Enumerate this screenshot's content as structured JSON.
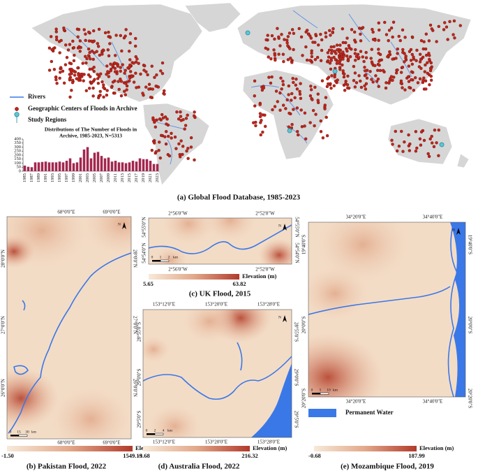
{
  "panel_a": {
    "legend": [
      "Rivers",
      "Geographic Centers of Floods in Archive",
      "Study Regions"
    ],
    "caption": "(a) Global Flood Database, 1985-2023"
  },
  "chart_data": {
    "type": "bar",
    "title": [
      "Distributions of The Number of Floods in",
      "Archive, 1985-2023, N=5313"
    ],
    "color": "#a3274f",
    "categories": [
      "1985",
      null,
      "1987",
      null,
      "1989",
      null,
      "1991",
      null,
      "1993",
      null,
      "1995",
      null,
      "1997",
      null,
      "1999",
      null,
      "2001",
      null,
      "2003",
      null,
      "2005",
      null,
      "2007",
      null,
      "2009",
      null,
      "2011",
      null,
      "2013",
      null,
      "2015",
      null,
      "2017",
      null,
      "2019",
      null,
      "2021",
      null,
      "2023"
    ],
    "values": [
      70,
      55,
      50,
      110,
      110,
      115,
      120,
      110,
      110,
      110,
      120,
      110,
      130,
      160,
      100,
      110,
      170,
      270,
      300,
      160,
      230,
      240,
      190,
      160,
      170,
      120,
      130,
      110,
      110,
      100,
      110,
      130,
      120,
      160,
      150,
      150,
      130,
      90,
      90
    ],
    "ylim": [
      0,
      400
    ],
    "yticks": [
      0,
      50,
      100,
      150,
      200,
      250,
      300,
      350,
      400
    ]
  },
  "panels": [
    {
      "caption": "(b) Pakistan Flood, 2022",
      "top_lon": [
        "68°0'0\"E",
        "69°0'0\"E"
      ],
      "bottom_lon": [
        "68°0'0\"E",
        "69°0'0\"E"
      ],
      "left_lat": [
        "28°0'0\"N",
        "27°0'0\"N",
        "26°0'0\"N"
      ],
      "right_lat": [
        "28°0'0\"N",
        "27°0'0\"N",
        "26°0'0\"N"
      ],
      "scale": [
        "0",
        "15",
        "30",
        "km"
      ],
      "north": "N",
      "colorbar": {
        "title": "Elevation (m)",
        "min": "-1.50",
        "max": "1549.19"
      }
    },
    {
      "caption": "(c) UK Flood, 2015",
      "top_lon": [
        "2°56'0\"W",
        "2°52'0\"W"
      ],
      "bottom_lon": [
        "2°56'0\"W",
        "2°52'0\"W"
      ],
      "left_lat": [
        "54°55'0\"N",
        "54°54'0\"N"
      ],
      "right_lat": [
        "54°55'0\"N",
        "54°54'0\"N"
      ],
      "scale": [
        "0",
        "1",
        "2",
        "km"
      ],
      "north": "N",
      "colorbar": {
        "title": "Elevation (m)",
        "min": "5.65",
        "max": "63.82"
      }
    },
    {
      "caption": "(d) Australia Flood, 2022",
      "top_lon": [
        "153°12'0\"E",
        "153°20'0\"E",
        "153°28'0\"E"
      ],
      "bottom_lon": [
        "153°12'0\"E",
        "153°20'0\"E",
        "153°28'0\"E"
      ],
      "left_lat": [
        "28°55'0\"S",
        "29°0'0\"S",
        "29°5'0\"S"
      ],
      "right_lat": [
        "28°55'0\"S",
        "29°0'0\"S",
        "29°5'0\"S"
      ],
      "scale": [
        "0",
        "2",
        "4",
        "km"
      ],
      "north": "N",
      "colorbar": {
        "title": "Elevation (m)",
        "min": "-3.68",
        "max": "216.32"
      }
    },
    {
      "caption": "(e) Mozambique Flood, 2019",
      "top_lon": [
        "34°20'0\"E",
        "34°40'0\"E"
      ],
      "bottom_lon": [
        "34°20'0\"E",
        "34°40'0\"E"
      ],
      "left_lat": [
        "19°40'0\"S",
        "20°0'0\"S",
        "20°20'0\"S"
      ],
      "right_lat": [
        "19°40'0\"S",
        "20°0'0\"S",
        "20°20'0\"S"
      ],
      "scale": [
        "0",
        "5",
        "10",
        "km"
      ],
      "north": "N",
      "water_legend": "Permanent Water",
      "colorbar": {
        "title": "Elevation (m)",
        "min": "-0.68",
        "max": "187.99"
      }
    }
  ]
}
